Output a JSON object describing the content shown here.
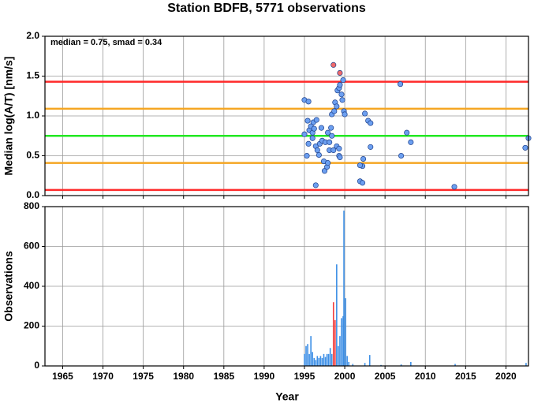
{
  "chart_data": [
    {
      "type": "scatter",
      "title": "Station BDFB, 5771 observations",
      "ylabel": "Median log(A/T) [nm/s]",
      "annotation": "median = 0.75, smad = 0.34",
      "xlim": [
        1962.8,
        2022.8
      ],
      "xticks": [
        1965,
        1970,
        1975,
        1980,
        1985,
        1990,
        1995,
        2000,
        2005,
        2010,
        2015,
        2020
      ],
      "ylim": [
        0,
        2
      ],
      "yticks": [
        {
          "value": 0,
          "label": "0.0"
        },
        0.5,
        {
          "value": 1,
          "label": "1.0"
        },
        1.5,
        {
          "value": 2,
          "label": "2.0"
        }
      ],
      "grid": true,
      "hlines": [
        {
          "value": 1.43,
          "color": "#ff2a2a"
        },
        {
          "value": 1.09,
          "color": "#f5a623"
        },
        {
          "value": 0.75,
          "color": "#22e822"
        },
        {
          "value": 0.41,
          "color": "#f5a623"
        },
        {
          "value": 0.07,
          "color": "#ff2a2a"
        }
      ],
      "series": [
        {
          "color": "#6c9ff0",
          "x": [
            1995.0,
            1995.5,
            1995.0,
            1995.4,
            1995.6,
            1995.8,
            1996.0,
            1996.2,
            1996.1,
            1996.5,
            1995.5,
            1995.3,
            1996.0,
            1996.4,
            1996.6,
            1996.9,
            1997.1,
            1997.2,
            1996.8,
            1997.4,
            1997.5,
            1997.8,
            1997.6,
            1997.9,
            1998.1,
            1998.4,
            1998.3,
            1998.4,
            1998.7,
            1998.8,
            1999.0,
            1999.1,
            1999.3,
            1999.4,
            1999.6,
            1999.7,
            1999.8,
            1999.9,
            2000.0,
            1999.0,
            1999.3,
            1999.3,
            1999.4,
            1998.1,
            1997.9,
            1998.6,
            1996.4,
            2002.5,
            2002.9,
            2003.2,
            2003.2,
            2002.3,
            2002.2,
            2001.9,
            2001.9,
            2002.2,
            2006.9,
            2007.7,
            2008.2,
            2007.0,
            2013.6,
            2022.4,
            2022.8
          ],
          "values": [
            1.2,
            1.18,
            0.77,
            0.94,
            0.82,
            0.87,
            0.79,
            0.84,
            0.92,
            0.95,
            0.65,
            0.5,
            0.72,
            0.62,
            0.57,
            0.65,
            0.85,
            0.69,
            0.51,
            0.43,
            0.31,
            0.36,
            0.67,
            0.79,
            0.67,
            0.75,
            0.85,
            1.02,
            1.06,
            1.17,
            1.12,
            1.32,
            1.35,
            1.39,
            1.27,
            1.2,
            1.45,
            1.06,
            1.02,
            0.62,
            0.59,
            0.5,
            0.48,
            0.57,
            0.41,
            0.57,
            0.13,
            1.03,
            0.94,
            0.91,
            0.61,
            0.46,
            0.37,
            0.38,
            0.18,
            0.16,
            1.4,
            0.79,
            0.67,
            0.5,
            0.11,
            0.6,
            0.72
          ]
        },
        {
          "color": "#f06a6a",
          "x": [
            1998.6,
            1999.4
          ],
          "values": [
            1.64,
            1.54
          ]
        }
      ]
    },
    {
      "type": "bar",
      "xlabel": "Year",
      "ylabel": "Observations",
      "xlim": [
        1962.8,
        2022.8
      ],
      "xticks": [
        1965,
        1970,
        1975,
        1980,
        1985,
        1990,
        1995,
        2000,
        2005,
        2010,
        2015,
        2020
      ],
      "ylim": [
        0,
        800
      ],
      "yticks": [
        0,
        200,
        400,
        600,
        800
      ],
      "grid": true,
      "series": [
        {
          "color": "#3d8fe6",
          "x": [
            1995.0,
            1995.2,
            1995.4,
            1995.6,
            1995.8,
            1996.0,
            1996.2,
            1996.4,
            1996.6,
            1996.8,
            1997.0,
            1997.2,
            1997.4,
            1997.6,
            1997.8,
            1998.0,
            1998.2,
            1998.4,
            1999.0,
            1999.2,
            1999.4,
            1999.6,
            1999.8,
            1999.9,
            2000.1,
            2000.3,
            2000.5,
            2001.0,
            2002.5,
            2003.1,
            2004.5,
            2007.0,
            2008.2,
            2013.7,
            2022.5
          ],
          "values": [
            60,
            100,
            110,
            60,
            150,
            70,
            40,
            30,
            50,
            40,
            50,
            40,
            60,
            45,
            60,
            60,
            90,
            60,
            510,
            100,
            150,
            240,
            250,
            780,
            340,
            50,
            20,
            10,
            15,
            55,
            5,
            8,
            20,
            10,
            15
          ]
        },
        {
          "color": "#f04040",
          "x": [
            1998.6,
            1998.8
          ],
          "values": [
            320,
            230
          ]
        }
      ]
    }
  ]
}
